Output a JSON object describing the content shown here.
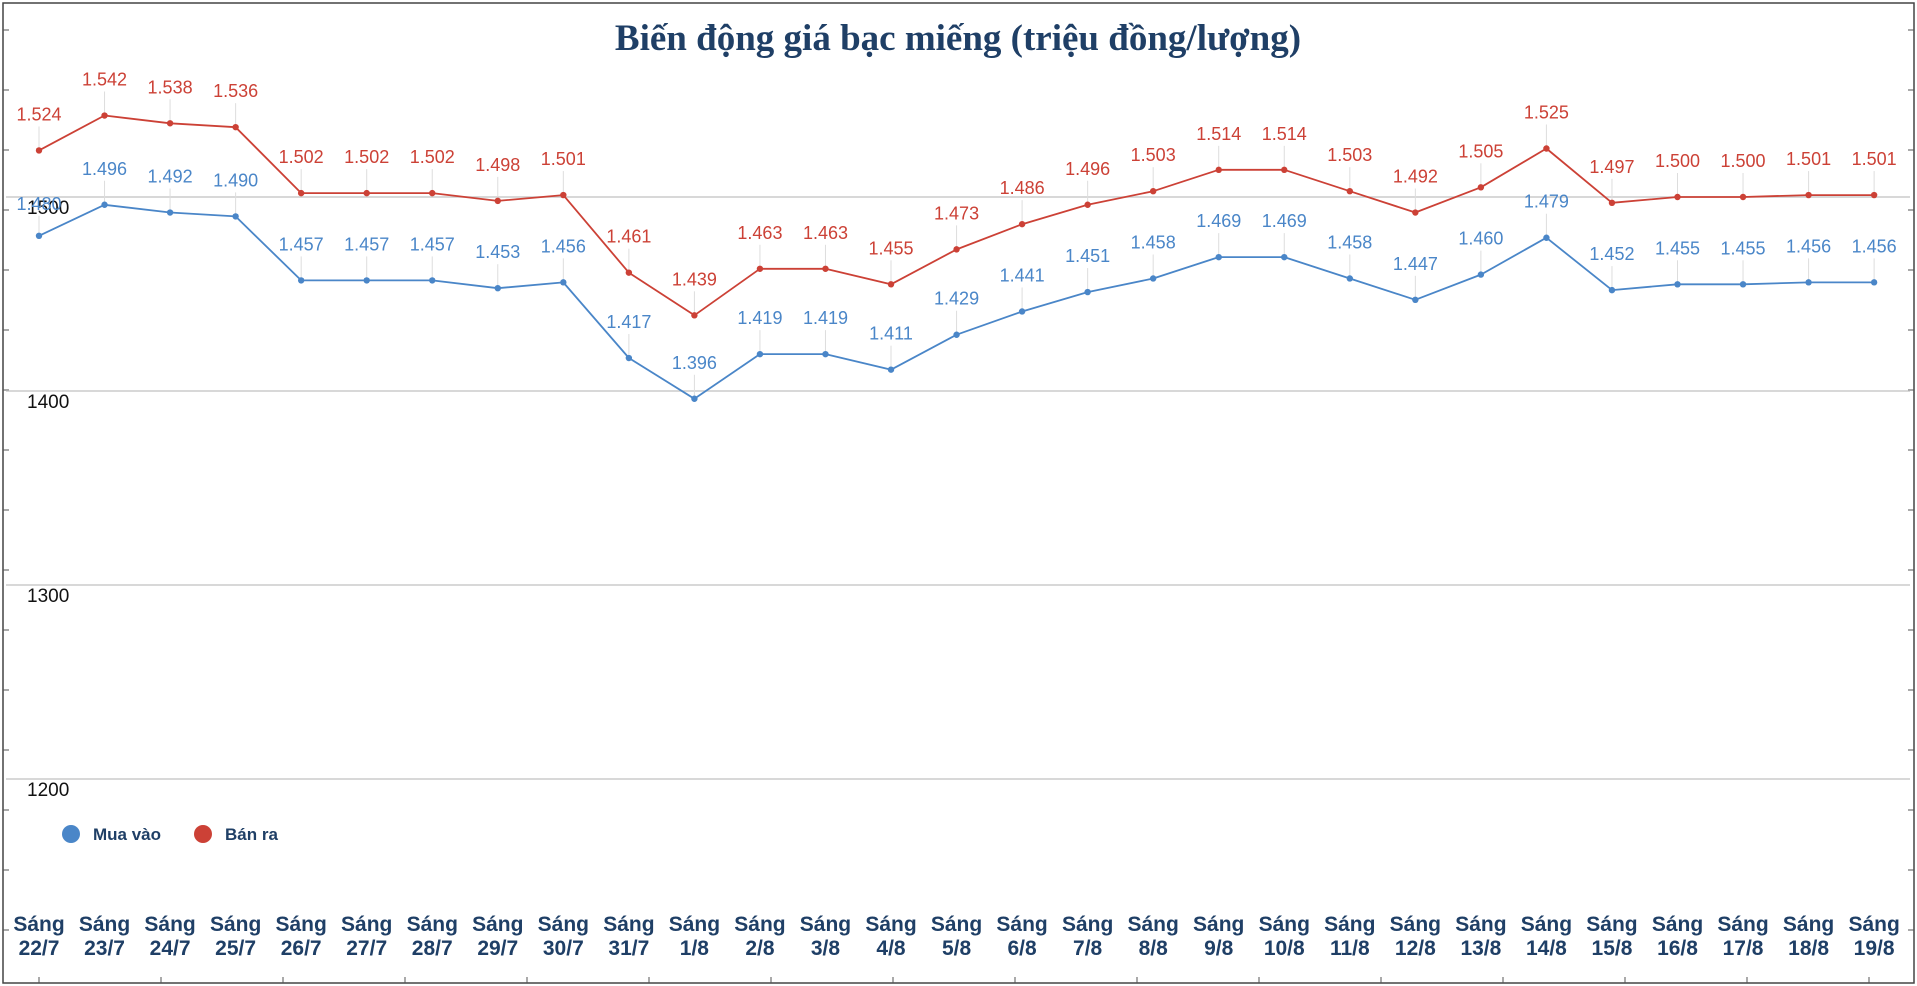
{
  "chart_data": {
    "type": "line",
    "title": "Biến động giá bạc miếng (triệu đồng/lượng)",
    "xlabel": "",
    "ylabel": "",
    "ylim": [
      1150,
      1550
    ],
    "yticks": [
      1200,
      1300,
      1400,
      1500
    ],
    "grid": true,
    "legend_position": "bottom-left",
    "categories": [
      [
        "Sáng",
        "22/7"
      ],
      [
        "Sáng",
        "23/7"
      ],
      [
        "Sáng",
        "24/7"
      ],
      [
        "Sáng",
        "25/7"
      ],
      [
        "Sáng",
        "26/7"
      ],
      [
        "Sáng",
        "27/7"
      ],
      [
        "Sáng",
        "28/7"
      ],
      [
        "Sáng",
        "29/7"
      ],
      [
        "Sáng",
        "30/7"
      ],
      [
        "Sáng",
        "31/7"
      ],
      [
        "Sáng",
        "1/8"
      ],
      [
        "Sáng",
        "2/8"
      ],
      [
        "Sáng",
        "3/8"
      ],
      [
        "Sáng",
        "4/8"
      ],
      [
        "Sáng",
        "5/8"
      ],
      [
        "Sáng",
        "6/8"
      ],
      [
        "Sáng",
        "7/8"
      ],
      [
        "Sáng",
        "8/8"
      ],
      [
        "Sáng",
        "9/8"
      ],
      [
        "Sáng",
        "10/8"
      ],
      [
        "Sáng",
        "11/8"
      ],
      [
        "Sáng",
        "12/8"
      ],
      [
        "Sáng",
        "13/8"
      ],
      [
        "Sáng",
        "14/8"
      ],
      [
        "Sáng",
        "15/8"
      ],
      [
        "Sáng",
        "16/8"
      ],
      [
        "Sáng",
        "17/8"
      ],
      [
        "Sáng",
        "18/8"
      ],
      [
        "Sáng",
        "19/8"
      ]
    ],
    "series": [
      {
        "name": "Mua vào",
        "color": "#4a86c8",
        "values": [
          1480,
          1496,
          1492,
          1490,
          1457,
          1457,
          1457,
          1453,
          1456,
          1417,
          1396,
          1419,
          1419,
          1411,
          1429,
          1441,
          1451,
          1458,
          1469,
          1469,
          1458,
          1447,
          1460,
          1479,
          1452,
          1455,
          1455,
          1456,
          1456
        ],
        "labels": [
          "1.480",
          "1.496",
          "1.492",
          "1.490",
          "1.457",
          "1.457",
          "1.457",
          "1.453",
          "1.456",
          "1.417",
          "1.396",
          "1.419",
          "1.419",
          "1.411",
          "1.429",
          "1.441",
          "1.451",
          "1.458",
          "1.469",
          "1.469",
          "1.458",
          "1.447",
          "1.460",
          "1.479",
          "1.452",
          "1.455",
          "1.455",
          "1.456",
          "1.456"
        ]
      },
      {
        "name": "Bán ra",
        "color": "#cc4136",
        "values": [
          1524,
          1542,
          1538,
          1536,
          1502,
          1502,
          1502,
          1498,
          1501,
          1461,
          1439,
          1463,
          1463,
          1455,
          1473,
          1486,
          1496,
          1503,
          1514,
          1514,
          1503,
          1492,
          1505,
          1525,
          1497,
          1500,
          1500,
          1501,
          1501
        ],
        "labels": [
          "1.524",
          "1.542",
          "1.538",
          "1.536",
          "1.502",
          "1.502",
          "1.502",
          "1.498",
          "1.501",
          "1.461",
          "1.439",
          "1.463",
          "1.463",
          "1.455",
          "1.473",
          "1.486",
          "1.496",
          "1.503",
          "1.514",
          "1.514",
          "1.503",
          "1.492",
          "1.505",
          "1.525",
          "1.497",
          "1.500",
          "1.500",
          "1.501",
          "1.501"
        ]
      }
    ],
    "legend": [
      {
        "name": "Mua vào",
        "color": "#4a86c8"
      },
      {
        "name": "Bán ra",
        "color": "#cc4136"
      }
    ]
  }
}
